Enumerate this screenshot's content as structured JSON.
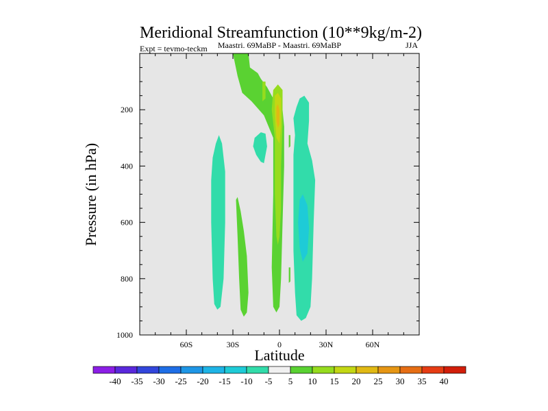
{
  "chart_data": {
    "type": "heatmap",
    "title": "Meridional Streamfunction (10**9kg/m-2)",
    "subtitle_left": "Expt = tevmo-teckm",
    "subtitle_center": "Maastri.  69MaBP - Maastri.  69MaBP",
    "subtitle_right": "JJA",
    "xlabel": "Latitude",
    "ylabel": "Pressure (in hPa)",
    "xlim": [
      -90,
      90
    ],
    "ylim": [
      1000,
      0
    ],
    "x_ticks": [
      {
        "value": -60,
        "label": "60S"
      },
      {
        "value": -30,
        "label": "30S"
      },
      {
        "value": 0,
        "label": "0"
      },
      {
        "value": 30,
        "label": "30N"
      },
      {
        "value": 60,
        "label": "60N"
      }
    ],
    "y_ticks": [
      {
        "value": 200,
        "label": "200"
      },
      {
        "value": 400,
        "label": "400"
      },
      {
        "value": 600,
        "label": "600"
      },
      {
        "value": 800,
        "label": "800"
      },
      {
        "value": 1000,
        "label": "1000"
      }
    ],
    "background_color": "#e6e6e6",
    "contour_levels": [
      -40,
      -35,
      -30,
      -25,
      -20,
      -15,
      -10,
      -5,
      5,
      10,
      15,
      20,
      25,
      30,
      35,
      40
    ],
    "colorbar_colors": [
      "#8c1ee6",
      "#5a28dc",
      "#3246dc",
      "#1e6ee6",
      "#1e96e6",
      "#1eb4e6",
      "#1ecbd7",
      "#32dcaa",
      "#f0f0f0",
      "#5ad232",
      "#96dc1e",
      "#c3d714",
      "#e1b914",
      "#e69614",
      "#e66e14",
      "#e63c14",
      "#d21e0a"
    ],
    "features": [
      {
        "name": "sh-negative-cell",
        "level_class": -5,
        "color": "#32dcaa",
        "polygon": [
          [
            -43,
            370
          ],
          [
            -41,
            320
          ],
          [
            -39,
            290
          ],
          [
            -37,
            320
          ],
          [
            -35,
            420
          ],
          [
            -35,
            600
          ],
          [
            -36,
            800
          ],
          [
            -38,
            900
          ],
          [
            -40,
            910
          ],
          [
            -42,
            890
          ],
          [
            -43,
            800
          ],
          [
            -44,
            600
          ],
          [
            -44,
            450
          ]
        ]
      },
      {
        "name": "sh-subtropic-positive",
        "level_class": 5,
        "color": "#5ad232",
        "polygon": [
          [
            -28,
            520
          ],
          [
            -27,
            510
          ],
          [
            -25,
            560
          ],
          [
            -23,
            630
          ],
          [
            -21,
            720
          ],
          [
            -20,
            850
          ],
          [
            -21,
            920
          ],
          [
            -23,
            935
          ],
          [
            -25,
            910
          ],
          [
            -26,
            800
          ],
          [
            -27,
            650
          ]
        ]
      },
      {
        "name": "tropical-positive-cell",
        "level_class": 5,
        "color": "#5ad232",
        "polygon": [
          [
            -30,
            0
          ],
          [
            -20,
            0
          ],
          [
            -19,
            50
          ],
          [
            -14,
            70
          ],
          [
            -12,
            90
          ],
          [
            -8,
            120
          ],
          [
            -5,
            150
          ],
          [
            -2,
            180
          ],
          [
            2,
            200
          ],
          [
            3,
            260
          ],
          [
            3,
            400
          ],
          [
            2,
            600
          ],
          [
            1,
            800
          ],
          [
            0,
            900
          ],
          [
            -2,
            920
          ],
          [
            -4,
            900
          ],
          [
            -5,
            760
          ],
          [
            -4,
            500
          ],
          [
            -4,
            300
          ],
          [
            -10,
            220
          ],
          [
            -18,
            170
          ],
          [
            -24,
            140
          ],
          [
            -27,
            80
          ]
        ]
      },
      {
        "name": "tropical-positive-cell-10",
        "level_class": 10,
        "color": "#96dc1e",
        "polygon": [
          [
            -4,
            130
          ],
          [
            -1,
            110
          ],
          [
            2,
            130
          ],
          [
            2,
            250
          ],
          [
            1,
            400
          ],
          [
            1,
            550
          ],
          [
            0,
            650
          ],
          [
            -1,
            680
          ],
          [
            -2,
            650
          ],
          [
            -3,
            500
          ],
          [
            -3,
            300
          ],
          [
            -5,
            200
          ]
        ]
      },
      {
        "name": "tropical-positive-cell-15",
        "level_class": 15,
        "color": "#c3d714",
        "polygon": [
          [
            -3,
            150
          ],
          [
            -1,
            140
          ],
          [
            1,
            160
          ],
          [
            1,
            260
          ],
          [
            0,
            320
          ],
          [
            -2,
            300
          ],
          [
            -3,
            220
          ]
        ]
      },
      {
        "name": "tropical-positive-cell-20",
        "level_class": 20,
        "color": "#e1b914",
        "polygon": [
          [
            -2,
            190
          ],
          [
            -1,
            180
          ],
          [
            0,
            200
          ],
          [
            0,
            250
          ],
          [
            -1,
            265
          ],
          [
            -2,
            240
          ]
        ]
      },
      {
        "name": "upper-positive-blob",
        "level_class": 10,
        "color": "#96dc1e",
        "polygon": [
          [
            -11,
            100
          ],
          [
            -9,
            100
          ],
          [
            -9,
            160
          ],
          [
            -11,
            170
          ]
        ]
      },
      {
        "name": "sh-small-negative",
        "level_class": -5,
        "color": "#32dcaa",
        "polygon": [
          [
            -16,
            300
          ],
          [
            -12,
            280
          ],
          [
            -9,
            285
          ],
          [
            -8,
            330
          ],
          [
            -10,
            390
          ],
          [
            -12,
            385
          ],
          [
            -15,
            360
          ],
          [
            -17,
            330
          ]
        ]
      },
      {
        "name": "nh-negative-cell",
        "level_class": -5,
        "color": "#32dcaa",
        "polygon": [
          [
            9,
            230
          ],
          [
            11,
            190
          ],
          [
            13,
            160
          ],
          [
            16,
            150
          ],
          [
            19,
            175
          ],
          [
            19,
            240
          ],
          [
            18,
            320
          ],
          [
            21,
            380
          ],
          [
            23,
            450
          ],
          [
            22,
            600
          ],
          [
            21,
            800
          ],
          [
            20,
            900
          ],
          [
            17,
            940
          ],
          [
            14,
            950
          ],
          [
            11,
            930
          ],
          [
            10,
            850
          ],
          [
            9,
            700
          ],
          [
            9,
            500
          ],
          [
            9,
            360
          ],
          [
            10,
            290
          ]
        ]
      },
      {
        "name": "nh-negative-cell-10",
        "level_class": -10,
        "color": "#1ecbd7",
        "polygon": [
          [
            13,
            520
          ],
          [
            15,
            500
          ],
          [
            18,
            540
          ],
          [
            19,
            620
          ],
          [
            18,
            710
          ],
          [
            15,
            740
          ],
          [
            13,
            690
          ],
          [
            12,
            600
          ]
        ]
      },
      {
        "name": "small-positive-sliver-upper",
        "level_class": 5,
        "color": "#5ad232",
        "polygon": [
          [
            6,
            290
          ],
          [
            7,
            290
          ],
          [
            7,
            330
          ],
          [
            6,
            335
          ]
        ]
      },
      {
        "name": "small-positive-sliver-lower",
        "level_class": 5,
        "color": "#5ad232",
        "polygon": [
          [
            6,
            760
          ],
          [
            7,
            760
          ],
          [
            7,
            810
          ],
          [
            6,
            815
          ]
        ]
      }
    ]
  }
}
